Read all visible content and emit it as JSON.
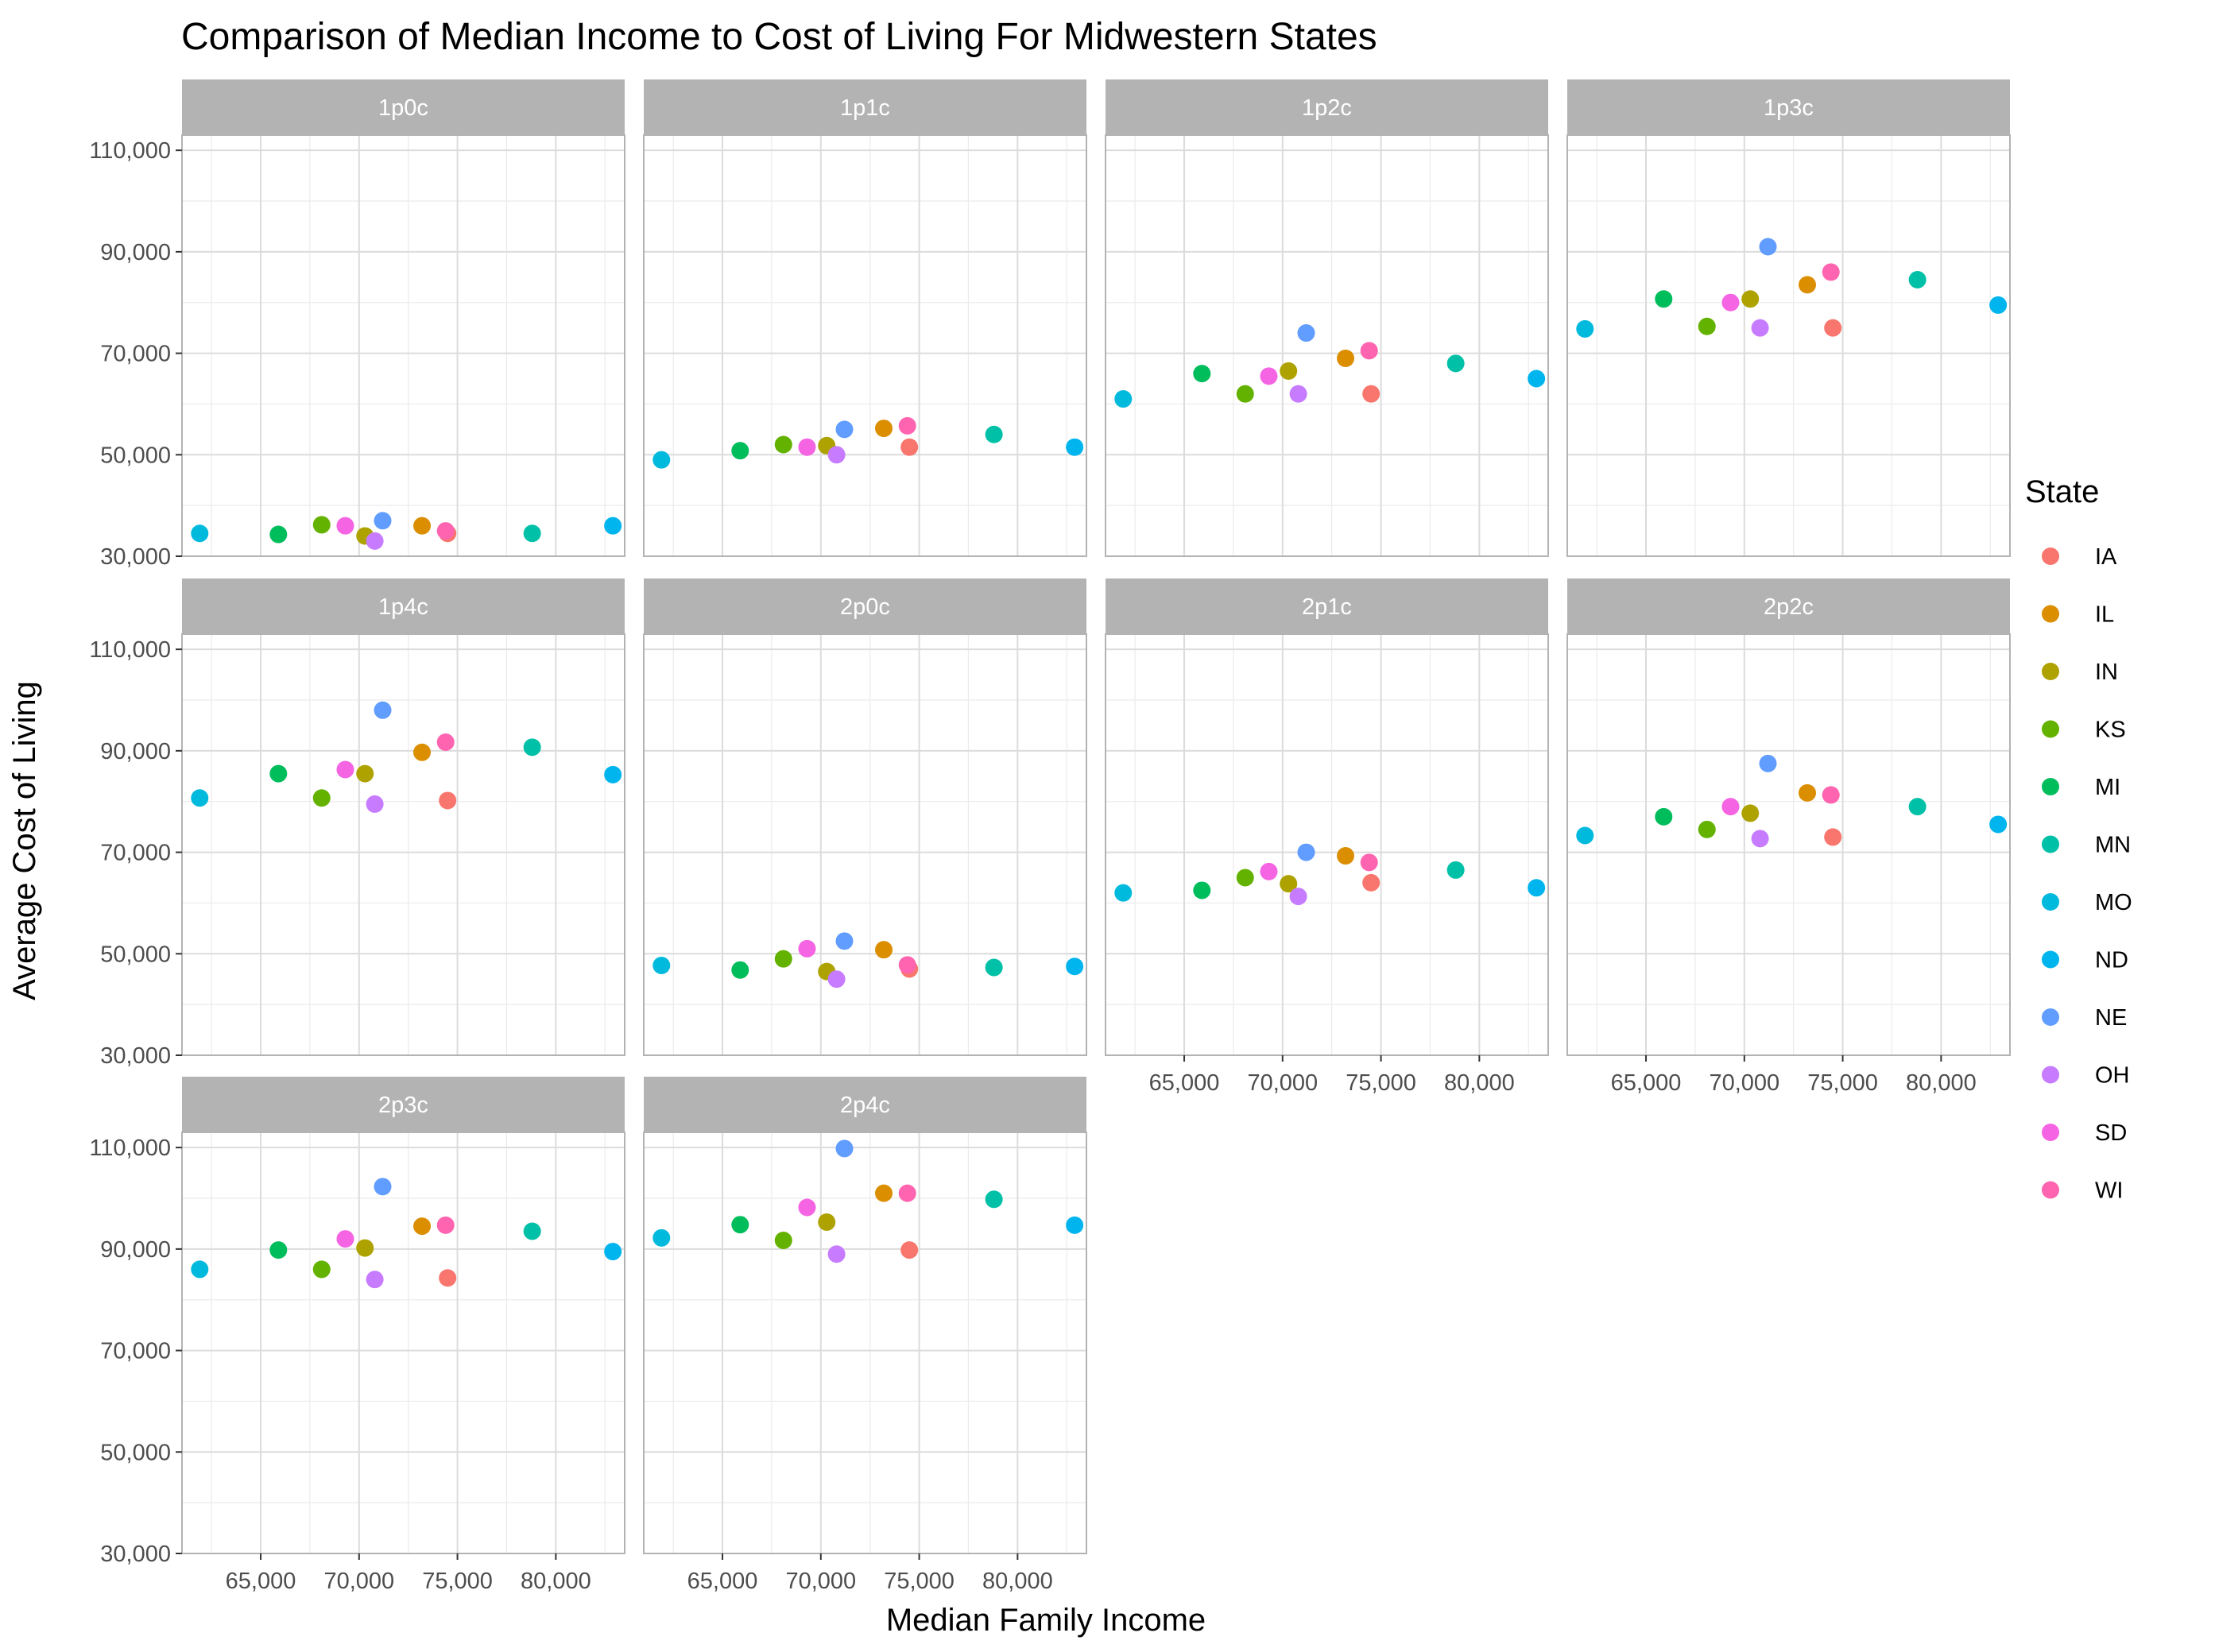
{
  "chart_data": {
    "type": "scatter",
    "title": "Comparison of Median Income to Cost of Living For Midwestern States",
    "xlabel": "Median Family Income",
    "ylabel": "Average Cost of Living",
    "xlim": [
      61000,
      83500
    ],
    "ylim": [
      30000,
      113000
    ],
    "x_ticks": [
      65000,
      70000,
      75000,
      80000
    ],
    "x_tick_labels": [
      "65,000",
      "70,000",
      "75,000",
      "80,000"
    ],
    "y_ticks": [
      30000,
      50000,
      70000,
      90000,
      110000
    ],
    "y_tick_labels": [
      "30,000",
      "50,000",
      "70,000",
      "90,000",
      "110,000"
    ],
    "grid": true,
    "facet_columns": 4,
    "legend": {
      "title": "State",
      "position": "right",
      "entries": [
        {
          "name": "IA",
          "color": "#F8766D"
        },
        {
          "name": "IL",
          "color": "#DB8E00"
        },
        {
          "name": "IN",
          "color": "#AEA200"
        },
        {
          "name": "KS",
          "color": "#64B200"
        },
        {
          "name": "MI",
          "color": "#00BD5C"
        },
        {
          "name": "MN",
          "color": "#00C1A7"
        },
        {
          "name": "MO",
          "color": "#00BADE"
        },
        {
          "name": "ND",
          "color": "#00A6FF"
        },
        {
          "name": "NE",
          "color": "#B385FF"
        },
        {
          "name": "OH",
          "color": "#C77CFF"
        },
        {
          "name": "SD",
          "color": "#EF67EB"
        },
        {
          "name": "WI",
          "color": "#FF63B6"
        }
      ]
    },
    "incomes": {
      "IA": 74500,
      "IL": 73200,
      "IN": 70300,
      "KS": 68100,
      "MI": 65900,
      "MN": 78800,
      "MO": 61900,
      "ND": 82900,
      "NE": 71200,
      "OH": 70800,
      "SD": 69300,
      "WI": 74400
    },
    "point_colors": {
      "IA": "#F8766D",
      "IL": "#DB8E00",
      "IN": "#AEA200",
      "KS": "#64B200",
      "MI": "#00BD5C",
      "MN": "#00C1A7",
      "MO": "#00BADE",
      "ND": "#00B5EE",
      "NE": "#619CFF",
      "OH": "#C77CFF",
      "SD": "#F564E3",
      "WI": "#FF64B0"
    },
    "facets": [
      {
        "label": "1p0c",
        "costs": {
          "IA": 34500,
          "IL": 36000,
          "IN": 34000,
          "KS": 36200,
          "MI": 34300,
          "MN": 34500,
          "MO": 34500,
          "ND": 36000,
          "NE": 37000,
          "OH": 33000,
          "SD": 36000,
          "WI": 35000
        }
      },
      {
        "label": "1p1c",
        "costs": {
          "IA": 51500,
          "IL": 55200,
          "IN": 51800,
          "KS": 52000,
          "MI": 50800,
          "MN": 54000,
          "MO": 49000,
          "ND": 51500,
          "NE": 55000,
          "OH": 50000,
          "SD": 51500,
          "WI": 55700
        }
      },
      {
        "label": "1p2c",
        "costs": {
          "IA": 62000,
          "IL": 69000,
          "IN": 66500,
          "KS": 62000,
          "MI": 66000,
          "MN": 68000,
          "MO": 61000,
          "ND": 65000,
          "NE": 74000,
          "OH": 62000,
          "SD": 65500,
          "WI": 70500
        }
      },
      {
        "label": "1p3c",
        "costs": {
          "IA": 75000,
          "IL": 83500,
          "IN": 80700,
          "KS": 75300,
          "MI": 80700,
          "MN": 84500,
          "MO": 74800,
          "ND": 79500,
          "NE": 91000,
          "OH": 75000,
          "SD": 80000,
          "WI": 86000
        }
      },
      {
        "label": "1p4c",
        "costs": {
          "IA": 80200,
          "IL": 89700,
          "IN": 85500,
          "KS": 80700,
          "MI": 85500,
          "MN": 90700,
          "MO": 80700,
          "ND": 85300,
          "NE": 98000,
          "OH": 79500,
          "SD": 86300,
          "WI": 91700
        }
      },
      {
        "label": "2p0c",
        "costs": {
          "IA": 47000,
          "IL": 50800,
          "IN": 46500,
          "KS": 49000,
          "MI": 46800,
          "MN": 47300,
          "MO": 47700,
          "ND": 47500,
          "NE": 52500,
          "OH": 45000,
          "SD": 51000,
          "WI": 47800
        }
      },
      {
        "label": "2p1c",
        "costs": {
          "IA": 64000,
          "IL": 69300,
          "IN": 63800,
          "KS": 65000,
          "MI": 62500,
          "MN": 66500,
          "MO": 62000,
          "ND": 63000,
          "NE": 70000,
          "OH": 61300,
          "SD": 66200,
          "WI": 68000
        }
      },
      {
        "label": "2p2c",
        "costs": {
          "IA": 73000,
          "IL": 81700,
          "IN": 77700,
          "KS": 74500,
          "MI": 77000,
          "MN": 79000,
          "MO": 73300,
          "ND": 75500,
          "NE": 87500,
          "OH": 72700,
          "SD": 79000,
          "WI": 81300
        }
      },
      {
        "label": "2p3c",
        "costs": {
          "IA": 84300,
          "IL": 94500,
          "IN": 90200,
          "KS": 86000,
          "MI": 89800,
          "MN": 93500,
          "MO": 86000,
          "ND": 89500,
          "NE": 102300,
          "OH": 84000,
          "SD": 92000,
          "WI": 94700
        }
      },
      {
        "label": "2p4c",
        "costs": {
          "IA": 89800,
          "IL": 101000,
          "IN": 95300,
          "KS": 91700,
          "MI": 94800,
          "MN": 99800,
          "MO": 92200,
          "ND": 94700,
          "NE": 109800,
          "OH": 89000,
          "SD": 98200,
          "WI": 101000
        }
      }
    ]
  }
}
